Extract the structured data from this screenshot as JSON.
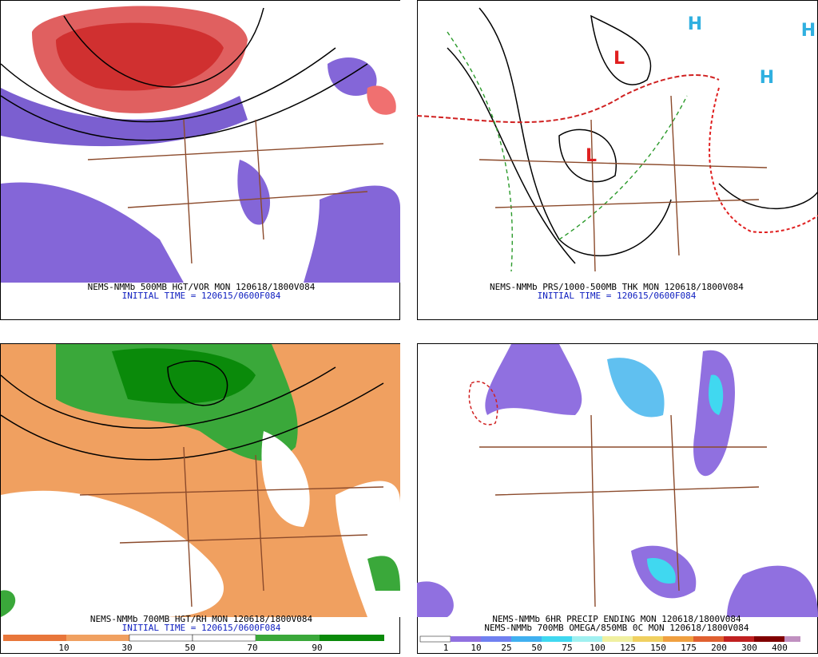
{
  "panels": [
    {
      "caption": "NEMS-NMMb 500MB HGT/VOR MON 120618/1800V084",
      "initial_time": "INITIAL TIME = 120615/0600F084"
    },
    {
      "caption": "NEMS-NMMb PRS/1000-500MB THK MON 120618/1800V084",
      "initial_time": "INITIAL TIME = 120615/0600F084",
      "pressure_centers": [
        "L",
        "L",
        "H",
        "H",
        "H"
      ]
    },
    {
      "caption": "NEMS-NMMb 700MB HGT/RH MON 120618/1800V084",
      "initial_time": "INITIAL TIME = 120615/0600F084",
      "colorbar_labels": [
        "10",
        "30",
        "50",
        "70",
        "90"
      ]
    },
    {
      "caption": "NEMS-NMMb 6HR PRECIP ENDING MON 120618/1800V084",
      "caption2": "NEMS-NMMb 700MB OMEGA/850MB 0C MON 120618/1800V084",
      "colorbar_labels": [
        "1",
        "10",
        "25",
        "50",
        "75",
        "100",
        "125",
        "150",
        "175",
        "200",
        "300",
        "400"
      ]
    }
  ]
}
